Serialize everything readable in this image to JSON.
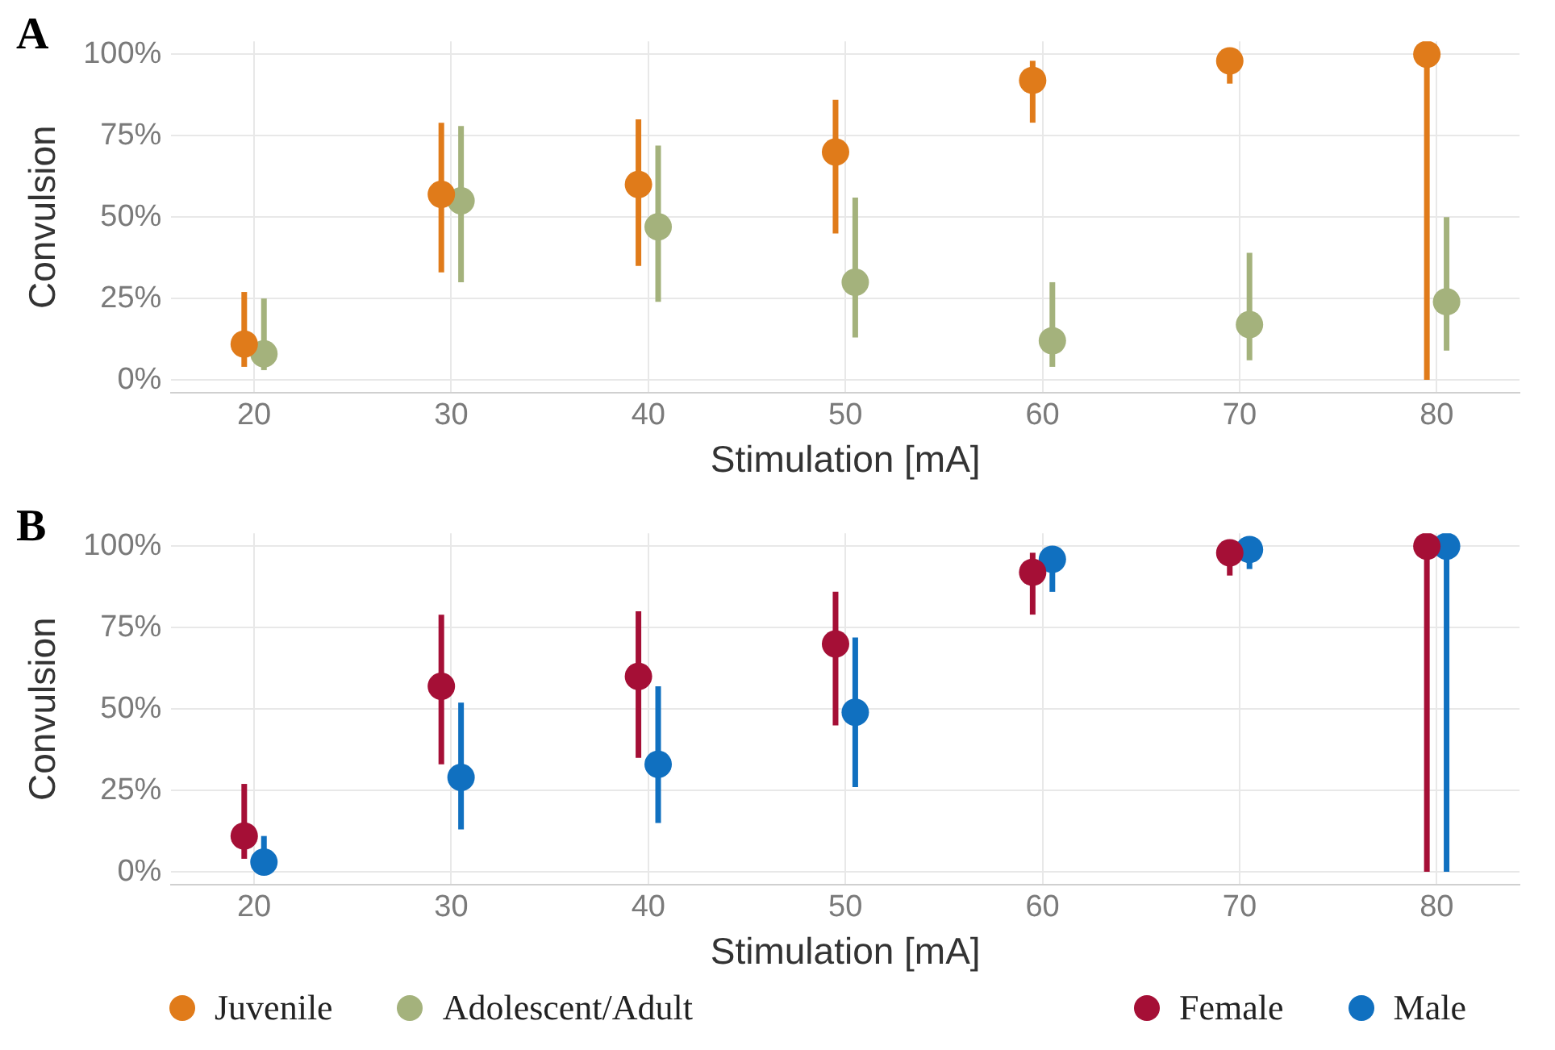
{
  "chart_data": [
    {
      "type": "scatter",
      "title": "A",
      "xlabel": "Stimulation [mA]",
      "ylabel": "Convulsion",
      "xlim": [
        15.8,
        84.2
      ],
      "xticks": [
        20,
        30,
        40,
        50,
        60,
        70,
        80
      ],
      "ylim": [
        -4,
        104
      ],
      "yticks": [
        {
          "value": 0,
          "label": "0%"
        },
        {
          "value": 25,
          "label": "25%"
        },
        {
          "value": 50,
          "label": "50%"
        },
        {
          "value": 75,
          "label": "75%"
        },
        {
          "value": 100,
          "label": "100%"
        }
      ],
      "grid": true,
      "legend": "bottom left",
      "marker": "circle",
      "series": [
        {
          "name": "Juvenile",
          "color": "#e07b1a",
          "x": [
            19.5,
            29.5,
            39.5,
            49.5,
            59.5,
            69.5,
            79.5
          ],
          "values": [
            11,
            57,
            60,
            70,
            92,
            98,
            100
          ],
          "errors": [
            [
              4,
              27
            ],
            [
              33,
              79
            ],
            [
              35,
              80
            ],
            [
              45,
              86
            ],
            [
              79,
              98
            ],
            [
              91,
              98
            ],
            [
              0,
              100
            ]
          ]
        },
        {
          "name": "Adolescent/Adult",
          "color": "#a4b27c",
          "x": [
            20.5,
            30.5,
            40.5,
            50.5,
            60.5,
            70.5,
            80.5
          ],
          "values": [
            8,
            55,
            47,
            30,
            12,
            17,
            24
          ],
          "errors": [
            [
              3,
              25
            ],
            [
              30,
              78
            ],
            [
              24,
              72
            ],
            [
              13,
              56
            ],
            [
              4,
              30
            ],
            [
              6,
              39
            ],
            [
              9,
              50
            ]
          ]
        }
      ]
    },
    {
      "type": "scatter",
      "title": "B",
      "xlabel": "Stimulation [mA]",
      "ylabel": "Convulsion",
      "xlim": [
        15.8,
        84.2
      ],
      "xticks": [
        20,
        30,
        40,
        50,
        60,
        70,
        80
      ],
      "ylim": [
        -4,
        104
      ],
      "yticks": [
        {
          "value": 0,
          "label": "0%"
        },
        {
          "value": 25,
          "label": "25%"
        },
        {
          "value": 50,
          "label": "50%"
        },
        {
          "value": 75,
          "label": "75%"
        },
        {
          "value": 100,
          "label": "100%"
        }
      ],
      "grid": true,
      "legend": "bottom right",
      "marker": "circle",
      "series": [
        {
          "name": "Female",
          "color": "#a50f36",
          "x": [
            19.5,
            29.5,
            39.5,
            49.5,
            59.5,
            69.5,
            79.5
          ],
          "values": [
            11,
            57,
            60,
            70,
            92,
            98,
            100
          ],
          "errors": [
            [
              4,
              27
            ],
            [
              33,
              79
            ],
            [
              35,
              80
            ],
            [
              45,
              86
            ],
            [
              79,
              98
            ],
            [
              91,
              98
            ],
            [
              0,
              100
            ]
          ]
        },
        {
          "name": "Male",
          "color": "#1070c0",
          "x": [
            20.5,
            30.5,
            40.5,
            50.5,
            60.5,
            70.5,
            80.5
          ],
          "values": [
            3,
            29,
            33,
            49,
            96,
            99,
            100
          ],
          "errors": [
            [
              0,
              11
            ],
            [
              13,
              52
            ],
            [
              15,
              57
            ],
            [
              26,
              72
            ],
            [
              86,
              100
            ],
            [
              93,
              99
            ],
            [
              0,
              100
            ]
          ]
        }
      ]
    }
  ]
}
